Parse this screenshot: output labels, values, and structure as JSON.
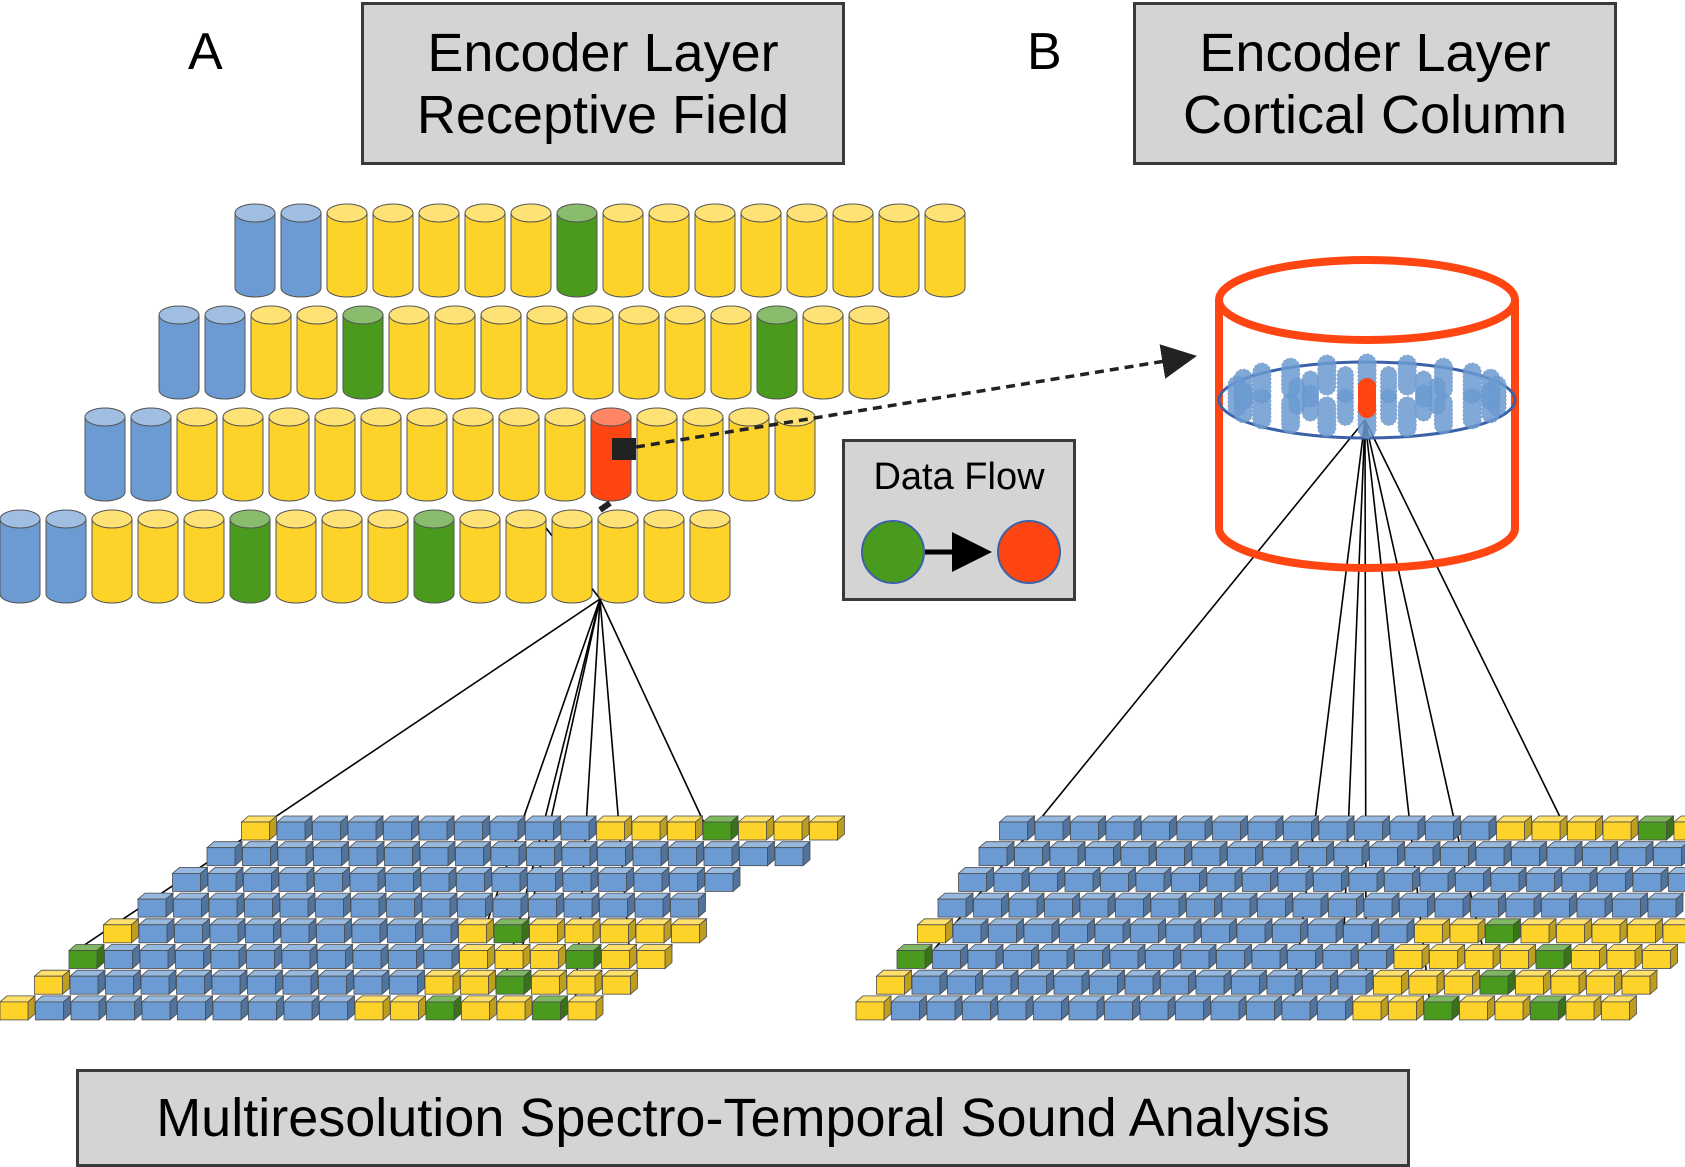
{
  "panels": {
    "a": {
      "letter": "A",
      "title": [
        "Encoder Layer",
        "Receptive Field"
      ]
    },
    "b": {
      "letter": "B",
      "title": [
        "Encoder Layer",
        "Cortical Column"
      ]
    }
  },
  "legend": {
    "title": "Data Flow",
    "from_color": "#4a9a1e",
    "to_color": "#ff4511"
  },
  "bottom_label": "Multiresolution Spectro-Temporal Sound Analysis",
  "colors": {
    "blue": "#6b9bd2",
    "yellow": "#fdd32a",
    "green": "#4a9a1e",
    "red": "#ff4511",
    "column_outline": "#ff4511",
    "disc_outline": "#3b62a8"
  },
  "encoder_layer": {
    "rows": [
      [
        "blue",
        "blue",
        "yellow",
        "yellow",
        "yellow",
        "yellow",
        "yellow",
        "green",
        "yellow",
        "yellow",
        "yellow",
        "yellow",
        "yellow",
        "yellow",
        "yellow",
        "yellow"
      ],
      [
        "blue",
        "blue",
        "yellow",
        "yellow",
        "green",
        "yellow",
        "yellow",
        "yellow",
        "yellow",
        "yellow",
        "yellow",
        "yellow",
        "yellow",
        "green",
        "yellow",
        "yellow"
      ],
      [
        "blue",
        "blue",
        "yellow",
        "yellow",
        "yellow",
        "yellow",
        "yellow",
        "yellow",
        "yellow",
        "yellow",
        "yellow",
        "red",
        "yellow",
        "yellow",
        "yellow",
        "yellow"
      ],
      [
        "blue",
        "blue",
        "yellow",
        "yellow",
        "yellow",
        "green",
        "yellow",
        "yellow",
        "yellow",
        "green",
        "yellow",
        "yellow",
        "yellow",
        "yellow",
        "yellow",
        "yellow"
      ]
    ]
  },
  "sound_grids": {
    "a": {
      "rows": [
        "  YBBBBBBBBBYYYGYYY",
        "  BBBBBBBBBBBBBBBBB",
        "  BBBBBBBBBBBBBBBB ",
        "  BBBBBBBBBBBBBBBB ",
        "  YBBBBBBBBBYGYYYYY",
        "  GBBBBBBBBBBYYYGYY",
        "  YBBBBBBBBBBYYGYYY",
        "  YBBBBBBBBBYYGYYGY"
      ]
    },
    "b": {
      "rows": [
        "  BBBBBBBBBBBBBBYYYYGYYY",
        "  BBBBBBBBBBBBBBBBBBBBBB",
        "  BBBBBBBBBBBBBBBBBBBBBB",
        "  BBBBBBBBBBBBBBBBBBBBB ",
        "  YBBBBBBBBBBBBBYYGYYYYY",
        "  GBBBBBBBBBBBBBYYYYGYYY",
        "  YBBBBBBBBBBBBBYYYGYYYY",
        "  YBBBBBBBBBBBBBYYGYYGYY"
      ]
    }
  }
}
